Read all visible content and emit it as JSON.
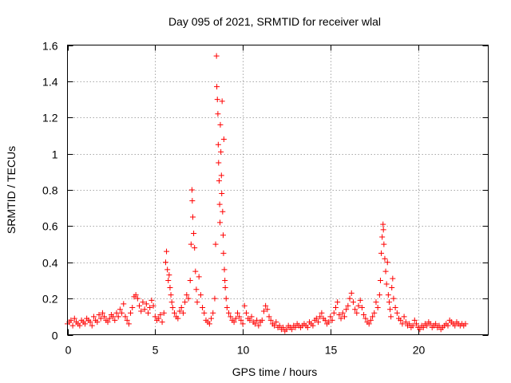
{
  "chart_data": {
    "type": "scatter",
    "title": "Day 095 of 2021, SRMTID for receiver wlal",
    "xlabel": "GPS time / hours",
    "ylabel": "SRMTID / TECUs",
    "xlim": [
      0,
      24
    ],
    "ylim": [
      0,
      1.6
    ],
    "xticks": [
      0,
      5,
      10,
      15,
      20
    ],
    "yticks": [
      0,
      0.2,
      0.4,
      0.6,
      0.8,
      1,
      1.2,
      1.4,
      1.6
    ],
    "xtick_labels": [
      "0",
      "5",
      "10",
      "15",
      "20"
    ],
    "ytick_labels": [
      "0",
      "0.2",
      "0.4",
      "0.6",
      "0.8",
      "1",
      "1.2",
      "1.4",
      "1.6"
    ],
    "grid": true,
    "marker": "+",
    "series": [
      {
        "name": "SRMTID",
        "color": "#ff0000",
        "points": [
          [
            0.0,
            0.06
          ],
          [
            0.1,
            0.07
          ],
          [
            0.2,
            0.08
          ],
          [
            0.3,
            0.05
          ],
          [
            0.4,
            0.09
          ],
          [
            0.5,
            0.07
          ],
          [
            0.6,
            0.06
          ],
          [
            0.7,
            0.05
          ],
          [
            0.8,
            0.08
          ],
          [
            0.9,
            0.07
          ],
          [
            1.0,
            0.06
          ],
          [
            1.1,
            0.09
          ],
          [
            1.2,
            0.08
          ],
          [
            1.3,
            0.07
          ],
          [
            1.4,
            0.05
          ],
          [
            1.5,
            0.1
          ],
          [
            1.6,
            0.08
          ],
          [
            1.7,
            0.07
          ],
          [
            1.8,
            0.11
          ],
          [
            1.9,
            0.09
          ],
          [
            2.0,
            0.12
          ],
          [
            2.1,
            0.1
          ],
          [
            2.2,
            0.08
          ],
          [
            2.3,
            0.07
          ],
          [
            2.4,
            0.09
          ],
          [
            2.5,
            0.11
          ],
          [
            2.6,
            0.1
          ],
          [
            2.7,
            0.08
          ],
          [
            2.8,
            0.12
          ],
          [
            2.9,
            0.1
          ],
          [
            3.0,
            0.14
          ],
          [
            3.1,
            0.12
          ],
          [
            3.2,
            0.17
          ],
          [
            3.3,
            0.1
          ],
          [
            3.4,
            0.08
          ],
          [
            3.5,
            0.06
          ],
          [
            3.6,
            0.12
          ],
          [
            3.7,
            0.15
          ],
          [
            3.8,
            0.21
          ],
          [
            3.9,
            0.22
          ],
          [
            4.0,
            0.2
          ],
          [
            4.1,
            0.16
          ],
          [
            4.2,
            0.13
          ],
          [
            4.3,
            0.18
          ],
          [
            4.4,
            0.14
          ],
          [
            4.5,
            0.17
          ],
          [
            4.6,
            0.12
          ],
          [
            4.7,
            0.15
          ],
          [
            4.8,
            0.19
          ],
          [
            4.9,
            0.16
          ],
          [
            5.0,
            0.1
          ],
          [
            5.1,
            0.08
          ],
          [
            5.2,
            0.09
          ],
          [
            5.3,
            0.11
          ],
          [
            5.4,
            0.07
          ],
          [
            5.5,
            0.12
          ],
          [
            5.6,
            0.4
          ],
          [
            5.65,
            0.46
          ],
          [
            5.7,
            0.36
          ],
          [
            5.75,
            0.3
          ],
          [
            5.8,
            0.33
          ],
          [
            5.85,
            0.26
          ],
          [
            5.9,
            0.22
          ],
          [
            5.95,
            0.18
          ],
          [
            6.0,
            0.15
          ],
          [
            6.1,
            0.12
          ],
          [
            6.2,
            0.1
          ],
          [
            6.3,
            0.09
          ],
          [
            6.4,
            0.13
          ],
          [
            6.5,
            0.15
          ],
          [
            6.6,
            0.12
          ],
          [
            6.7,
            0.18
          ],
          [
            6.8,
            0.22
          ],
          [
            6.9,
            0.2
          ],
          [
            7.0,
            0.3
          ],
          [
            7.05,
            0.5
          ],
          [
            7.1,
            0.8
          ],
          [
            7.12,
            0.74
          ],
          [
            7.15,
            0.65
          ],
          [
            7.2,
            0.56
          ],
          [
            7.25,
            0.48
          ],
          [
            7.3,
            0.35
          ],
          [
            7.35,
            0.25
          ],
          [
            7.4,
            0.18
          ],
          [
            7.5,
            0.32
          ],
          [
            7.6,
            0.22
          ],
          [
            7.7,
            0.15
          ],
          [
            7.8,
            0.12
          ],
          [
            7.9,
            0.08
          ],
          [
            8.0,
            0.07
          ],
          [
            8.1,
            0.06
          ],
          [
            8.2,
            0.09
          ],
          [
            8.3,
            0.12
          ],
          [
            8.4,
            0.2
          ],
          [
            8.45,
            0.5
          ],
          [
            8.5,
            1.54
          ],
          [
            8.52,
            1.37
          ],
          [
            8.55,
            1.3
          ],
          [
            8.58,
            1.22
          ],
          [
            8.6,
            1.05
          ],
          [
            8.62,
            0.95
          ],
          [
            8.65,
            0.85
          ],
          [
            8.68,
            0.72
          ],
          [
            8.7,
            0.62
          ],
          [
            8.72,
            1.16
          ],
          [
            8.75,
            1.01
          ],
          [
            8.78,
            0.88
          ],
          [
            8.8,
            0.78
          ],
          [
            8.82,
            1.29
          ],
          [
            8.85,
            0.68
          ],
          [
            8.88,
            0.55
          ],
          [
            8.9,
            0.45
          ],
          [
            8.92,
            1.08
          ],
          [
            8.95,
            0.36
          ],
          [
            8.98,
            0.3
          ],
          [
            9.0,
            0.26
          ],
          [
            9.05,
            0.2
          ],
          [
            9.1,
            0.15
          ],
          [
            9.2,
            0.12
          ],
          [
            9.3,
            0.1
          ],
          [
            9.4,
            0.08
          ],
          [
            9.5,
            0.07
          ],
          [
            9.6,
            0.09
          ],
          [
            9.7,
            0.12
          ],
          [
            9.8,
            0.1
          ],
          [
            9.9,
            0.08
          ],
          [
            10.0,
            0.06
          ],
          [
            10.1,
            0.16
          ],
          [
            10.2,
            0.12
          ],
          [
            10.3,
            0.09
          ],
          [
            10.4,
            0.08
          ],
          [
            10.5,
            0.1
          ],
          [
            10.6,
            0.07
          ],
          [
            10.7,
            0.06
          ],
          [
            10.8,
            0.08
          ],
          [
            10.9,
            0.05
          ],
          [
            11.0,
            0.07
          ],
          [
            11.1,
            0.08
          ],
          [
            11.2,
            0.13
          ],
          [
            11.3,
            0.16
          ],
          [
            11.4,
            0.14
          ],
          [
            11.5,
            0.1
          ],
          [
            11.6,
            0.08
          ],
          [
            11.7,
            0.06
          ],
          [
            11.8,
            0.05
          ],
          [
            11.9,
            0.07
          ],
          [
            12.0,
            0.04
          ],
          [
            12.1,
            0.05
          ],
          [
            12.2,
            0.03
          ],
          [
            12.3,
            0.04
          ],
          [
            12.4,
            0.02
          ],
          [
            12.5,
            0.03
          ],
          [
            12.6,
            0.05
          ],
          [
            12.7,
            0.04
          ],
          [
            12.8,
            0.03
          ],
          [
            12.9,
            0.05
          ],
          [
            13.0,
            0.04
          ],
          [
            13.1,
            0.06
          ],
          [
            13.2,
            0.05
          ],
          [
            13.3,
            0.04
          ],
          [
            13.4,
            0.05
          ],
          [
            13.5,
            0.06
          ],
          [
            13.6,
            0.05
          ],
          [
            13.7,
            0.04
          ],
          [
            13.8,
            0.07
          ],
          [
            13.9,
            0.06
          ],
          [
            14.0,
            0.05
          ],
          [
            14.1,
            0.08
          ],
          [
            14.2,
            0.09
          ],
          [
            14.3,
            0.07
          ],
          [
            14.4,
            0.1
          ],
          [
            14.5,
            0.12
          ],
          [
            14.6,
            0.09
          ],
          [
            14.7,
            0.08
          ],
          [
            14.8,
            0.06
          ],
          [
            14.9,
            0.07
          ],
          [
            15.0,
            0.1
          ],
          [
            15.1,
            0.08
          ],
          [
            15.2,
            0.12
          ],
          [
            15.3,
            0.15
          ],
          [
            15.4,
            0.18
          ],
          [
            15.5,
            0.11
          ],
          [
            15.6,
            0.09
          ],
          [
            15.7,
            0.12
          ],
          [
            15.8,
            0.1
          ],
          [
            15.9,
            0.14
          ],
          [
            16.0,
            0.16
          ],
          [
            16.1,
            0.2
          ],
          [
            16.2,
            0.23
          ],
          [
            16.3,
            0.18
          ],
          [
            16.4,
            0.14
          ],
          [
            16.5,
            0.12
          ],
          [
            16.6,
            0.16
          ],
          [
            16.7,
            0.19
          ],
          [
            16.8,
            0.15
          ],
          [
            16.9,
            0.11
          ],
          [
            17.0,
            0.09
          ],
          [
            17.1,
            0.07
          ],
          [
            17.2,
            0.06
          ],
          [
            17.3,
            0.08
          ],
          [
            17.4,
            0.1
          ],
          [
            17.5,
            0.12
          ],
          [
            17.6,
            0.18
          ],
          [
            17.7,
            0.15
          ],
          [
            17.8,
            0.22
          ],
          [
            17.85,
            0.3
          ],
          [
            17.9,
            0.45
          ],
          [
            17.95,
            0.54
          ],
          [
            18.0,
            0.61
          ],
          [
            18.02,
            0.58
          ],
          [
            18.05,
            0.5
          ],
          [
            18.1,
            0.42
          ],
          [
            18.15,
            0.35
          ],
          [
            18.2,
            0.28
          ],
          [
            18.25,
            0.4
          ],
          [
            18.3,
            0.22
          ],
          [
            18.35,
            0.18
          ],
          [
            18.4,
            0.14
          ],
          [
            18.45,
            0.1
          ],
          [
            18.5,
            0.26
          ],
          [
            18.55,
            0.31
          ],
          [
            18.6,
            0.2
          ],
          [
            18.7,
            0.15
          ],
          [
            18.8,
            0.12
          ],
          [
            18.9,
            0.09
          ],
          [
            19.0,
            0.08
          ],
          [
            19.1,
            0.06
          ],
          [
            19.2,
            0.1
          ],
          [
            19.3,
            0.07
          ],
          [
            19.4,
            0.05
          ],
          [
            19.5,
            0.06
          ],
          [
            19.6,
            0.04
          ],
          [
            19.7,
            0.05
          ],
          [
            19.8,
            0.08
          ],
          [
            19.9,
            0.06
          ],
          [
            20.0,
            0.04
          ],
          [
            20.1,
            0.03
          ],
          [
            20.2,
            0.05
          ],
          [
            20.3,
            0.04
          ],
          [
            20.4,
            0.06
          ],
          [
            20.5,
            0.05
          ],
          [
            20.6,
            0.07
          ],
          [
            20.7,
            0.06
          ],
          [
            20.8,
            0.04
          ],
          [
            20.9,
            0.05
          ],
          [
            21.0,
            0.06
          ],
          [
            21.1,
            0.04
          ],
          [
            21.2,
            0.05
          ],
          [
            21.3,
            0.03
          ],
          [
            21.4,
            0.04
          ],
          [
            21.5,
            0.05
          ],
          [
            21.6,
            0.06
          ],
          [
            21.7,
            0.05
          ],
          [
            21.8,
            0.08
          ],
          [
            21.9,
            0.07
          ],
          [
            22.0,
            0.06
          ],
          [
            22.1,
            0.05
          ],
          [
            22.2,
            0.07
          ],
          [
            22.3,
            0.06
          ],
          [
            22.4,
            0.05
          ],
          [
            22.5,
            0.06
          ],
          [
            22.6,
            0.05
          ],
          [
            22.7,
            0.06
          ]
        ]
      }
    ]
  }
}
